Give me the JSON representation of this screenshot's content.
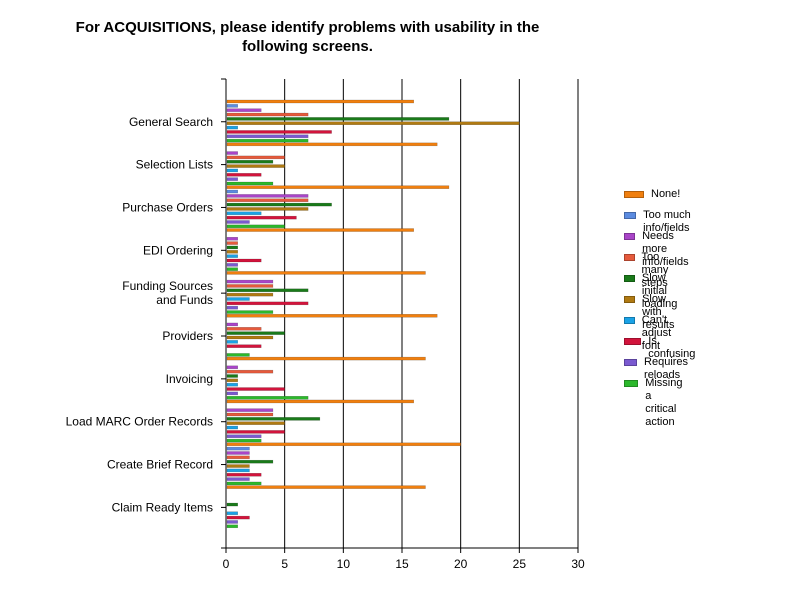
{
  "chart_data": {
    "type": "bar",
    "orientation": "horizontal",
    "title": [
      "For ACQUISITIONS, please identify problems with usability in the",
      "following screens."
    ],
    "categories": [
      "General Search",
      "Selection Lists",
      "Purchase Orders",
      "EDI Ordering",
      "Funding Sources\nand Funds",
      "Providers",
      "Invoicing",
      "Load MARC Order Records",
      "Create Brief Record",
      "Claim Ready Items"
    ],
    "xlim": [
      0,
      30
    ],
    "x_ticks": [
      0,
      5,
      10,
      15,
      20,
      25,
      30
    ],
    "grid": "vertical",
    "legend_position": "right",
    "series": [
      {
        "name": "None!",
        "color": "#F07F0F",
        "values": [
          16,
          18,
          19,
          16,
          17,
          18,
          17,
          16,
          20,
          17
        ]
      },
      {
        "name": "Too much info/fields",
        "color": "#5B8BE0",
        "values": [
          1,
          0,
          1,
          0,
          0,
          0,
          0,
          0,
          2,
          0
        ]
      },
      {
        "name": "Needs more info/fields",
        "color": "#A945C8",
        "values": [
          3,
          1,
          7,
          1,
          4,
          1,
          1,
          4,
          2,
          0
        ]
      },
      {
        "name": "Too many steps",
        "color": "#E55A3C",
        "values": [
          7,
          5,
          7,
          1,
          4,
          3,
          4,
          4,
          2,
          0
        ]
      },
      {
        "name": "Slow initial loading",
        "color": "#1A7A1A",
        "values": [
          19,
          4,
          9,
          1,
          7,
          5,
          1,
          8,
          4,
          1
        ]
      },
      {
        "name": "Slow with results",
        "color": "#B07A12",
        "values": [
          25,
          5,
          7,
          1,
          4,
          4,
          1,
          5,
          2,
          0
        ]
      },
      {
        "name": "Can't adjust font",
        "color": "#1AA2E6",
        "values": [
          1,
          1,
          3,
          1,
          2,
          1,
          1,
          1,
          2,
          1
        ]
      },
      {
        "name": "Is confusing",
        "color": "#D2143C",
        "values": [
          9,
          3,
          6,
          3,
          7,
          3,
          5,
          5,
          3,
          2
        ]
      },
      {
        "name": "Requires reloads",
        "color": "#7A5AD0",
        "values": [
          7,
          1,
          2,
          1,
          1,
          0,
          1,
          3,
          2,
          1
        ]
      },
      {
        "name": "Missing a\ncritical action",
        "color": "#2CB82C",
        "values": [
          7,
          4,
          5,
          1,
          4,
          2,
          7,
          3,
          3,
          1
        ]
      }
    ]
  }
}
